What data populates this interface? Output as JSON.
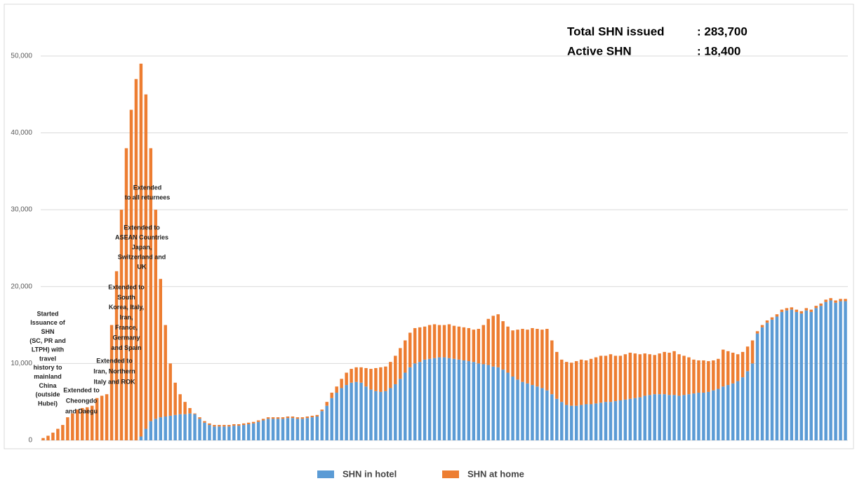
{
  "chart_data": {
    "type": "stacked_bar",
    "categories": [
      null,
      null,
      null,
      null,
      null,
      null,
      null,
      null,
      null,
      null,
      null,
      null,
      null,
      null,
      null,
      null,
      null,
      null,
      null,
      null,
      null,
      null,
      null,
      null,
      null,
      null,
      null,
      null,
      null,
      null,
      null,
      null,
      null,
      null,
      null,
      null,
      null,
      null,
      null,
      null,
      null,
      null,
      null,
      null,
      null,
      null,
      null,
      null,
      null,
      null,
      null,
      null,
      null,
      null,
      null,
      null,
      null,
      null,
      null,
      null,
      null,
      null,
      null,
      null,
      null,
      null,
      null,
      null,
      null,
      null,
      null,
      null,
      null,
      null,
      null,
      null,
      null,
      null,
      null,
      null,
      null,
      null,
      null,
      null,
      null,
      null,
      null,
      null,
      null,
      null,
      null,
      null,
      null,
      null,
      null,
      null,
      null,
      null,
      null,
      null,
      null,
      null,
      null,
      null,
      null,
      null,
      null,
      null,
      null,
      null,
      null,
      null,
      null,
      null,
      null,
      null,
      null,
      null,
      null,
      null,
      null,
      null,
      null,
      null,
      null,
      null,
      null,
      null,
      null,
      null,
      null,
      null,
      null,
      null,
      null,
      null,
      null,
      null,
      null,
      null,
      null,
      null,
      null,
      null,
      null,
      null,
      null,
      null,
      null,
      null,
      null,
      null,
      null,
      null,
      null,
      null,
      null,
      null,
      null,
      null,
      null,
      null,
      null,
      null,
      null
    ],
    "series": [
      {
        "name": "SHN in hotel",
        "color": "#5b9bd5",
        "values": [
          0,
          0,
          0,
          0,
          0,
          0,
          0,
          0,
          0,
          0,
          0,
          0,
          0,
          0,
          0,
          0,
          0,
          0,
          0,
          0,
          500,
          1500,
          2500,
          2800,
          3000,
          3100,
          3200,
          3300,
          3400,
          3400,
          3500,
          3400,
          2800,
          2300,
          2000,
          1800,
          1800,
          1800,
          1800,
          1900,
          1900,
          2000,
          2100,
          2200,
          2400,
          2600,
          2800,
          2800,
          2800,
          2800,
          2900,
          2900,
          2800,
          2800,
          2900,
          3000,
          3100,
          3800,
          4500,
          5500,
          6200,
          6800,
          7200,
          7500,
          7600,
          7500,
          7000,
          6600,
          6400,
          6300,
          6400,
          6800,
          7300,
          8000,
          8800,
          9500,
          10000,
          10200,
          10500,
          10600,
          10700,
          10800,
          10800,
          10700,
          10600,
          10500,
          10400,
          10300,
          10200,
          10000,
          9900,
          9800,
          9600,
          9500,
          9200,
          8800,
          8300,
          7900,
          7600,
          7400,
          7200,
          7000,
          6800,
          6500,
          6000,
          5400,
          5000,
          4600,
          4500,
          4500,
          4600,
          4700,
          4700,
          4800,
          4900,
          5000,
          5000,
          5100,
          5200,
          5300,
          5400,
          5500,
          5600,
          5800,
          5900,
          6000,
          6000,
          6000,
          5900,
          5900,
          5800,
          5900,
          6000,
          6100,
          6200,
          6200,
          6300,
          6500,
          6700,
          7000,
          7200,
          7400,
          7700,
          8200,
          9000,
          10000,
          13900,
          14700,
          15300,
          15700,
          16100,
          16700,
          16900,
          17000,
          16700,
          16500,
          16900,
          16700,
          17200,
          17500,
          18000,
          18200,
          17900,
          18100,
          18100
        ]
      },
      {
        "name": "SHN at home",
        "color": "#ed7d31",
        "values": [
          300,
          600,
          1000,
          1500,
          2000,
          3000,
          3500,
          4000,
          4200,
          4300,
          4500,
          5500,
          5800,
          6000,
          15000,
          22000,
          30000,
          38000,
          43000,
          47000,
          48500,
          43500,
          35500,
          27200,
          18000,
          11900,
          6800,
          4200,
          2600,
          1600,
          700,
          100,
          200,
          200,
          200,
          200,
          200,
          200,
          200,
          200,
          200,
          200,
          200,
          200,
          200,
          200,
          200,
          200,
          200,
          200,
          200,
          200,
          200,
          200,
          200,
          200,
          200,
          200,
          500,
          700,
          800,
          1200,
          1600,
          1800,
          1900,
          2000,
          2400,
          2700,
          3000,
          3200,
          3200,
          3400,
          3700,
          4000,
          4200,
          4500,
          4600,
          4500,
          4300,
          4400,
          4400,
          4200,
          4200,
          4400,
          4300,
          4300,
          4300,
          4300,
          4200,
          4500,
          5100,
          6000,
          6600,
          6900,
          6300,
          6000,
          6000,
          6500,
          6900,
          7000,
          7400,
          7500,
          7600,
          8000,
          7000,
          6100,
          5500,
          5600,
          5600,
          5800,
          5900,
          5700,
          5900,
          6000,
          6100,
          6000,
          6200,
          5900,
          5800,
          5900,
          6000,
          5800,
          5600,
          5500,
          5300,
          5100,
          5300,
          5500,
          5500,
          5700,
          5400,
          5100,
          4800,
          4400,
          4200,
          4200,
          4000,
          3900,
          3900,
          4800,
          4400,
          4000,
          3500,
          3300,
          3200,
          3000,
          300,
          300,
          300,
          300,
          300,
          300,
          300,
          300,
          300,
          300,
          300,
          300,
          300,
          300,
          300,
          300,
          300,
          300,
          300
        ]
      }
    ],
    "ylim": [
      0,
      55000
    ],
    "yticks": [
      0,
      {
        "value": 10000,
        "label": "10,000"
      },
      {
        "value": 20000,
        "label": "20,000"
      },
      {
        "value": 30000,
        "label": "30,000"
      },
      {
        "value": 40000,
        "label": "40,000"
      },
      {
        "value": 50000,
        "label": "50,000"
      }
    ],
    "grid": true,
    "legend": "bottom",
    "annotations": [
      {
        "lines": [
          "Started",
          "Issuance of",
          "SHN",
          "(SC, PR and",
          "LTPH) with",
          "travel",
          "history to",
          "mainland",
          "China",
          "(outside",
          "Hubei)"
        ]
      },
      {
        "lines": [
          "Extended to",
          "Cheongdo",
          "and Daegu"
        ]
      },
      {
        "lines": [
          "Extended to",
          "Iran, Northern",
          "Italy and ROK"
        ]
      },
      {
        "lines": [
          "Extended to",
          "South",
          "Korea, Italy,",
          "Iran,",
          "France,",
          "Germany",
          "and Spain"
        ]
      },
      {
        "lines": [
          "Extended to",
          "ASEAN Countries",
          "Japan,",
          "Switzerland and",
          "UK"
        ]
      },
      {
        "lines": [
          "Extended",
          "to all returnees"
        ]
      }
    ],
    "info": [
      {
        "label": "Total SHN issued",
        "value": ": 283,700"
      },
      {
        "label": "Active SHN",
        "value": ": 18,400"
      }
    ]
  }
}
